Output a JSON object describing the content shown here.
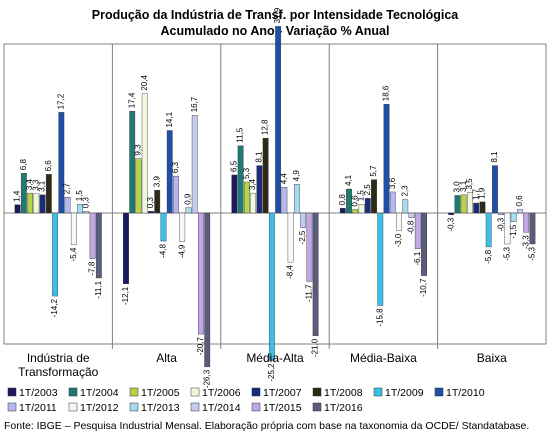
{
  "chart_data": {
    "type": "bar",
    "title": "Produção da Indústria de Transf. por Intensidade Tecnológica",
    "subtitle": "Acumulado no Ano - Variação % Anual",
    "categories": [
      "Indústria de Transformação",
      "Alta",
      "Média-Alta",
      "Média-Baixa",
      "Baixa"
    ],
    "ylim": [
      -28,
      32
    ],
    "grid": false,
    "legend_position": "bottom",
    "series": [
      {
        "name": "1T/2003",
        "color": "#1a1a60",
        "values": [
          1.4,
          -12.1,
          6.5,
          0.8,
          -0.3
        ]
      },
      {
        "name": "1T/2004",
        "color": "#1f7a72",
        "values": [
          6.8,
          17.4,
          11.5,
          4.1,
          3.0
        ]
      },
      {
        "name": "1T/2005",
        "color": "#b8d24a",
        "values": [
          3.4,
          9.3,
          5.3,
          0.6,
          3.1
        ]
      },
      {
        "name": "1T/2006",
        "color": "#eef8dc",
        "values": [
          3.3,
          20.4,
          3.4,
          1.5,
          3.5
        ]
      },
      {
        "name": "1T/2007",
        "color": "#1c2a7c",
        "values": [
          3.1,
          0.3,
          8.1,
          2.5,
          1.7
        ]
      },
      {
        "name": "1T/2008",
        "color": "#2b2b18",
        "values": [
          6.6,
          3.9,
          12.8,
          5.7,
          1.9
        ]
      },
      {
        "name": "1T/2009",
        "color": "#3cc0e6",
        "values": [
          -14.2,
          -4.8,
          -25.2,
          -15.8,
          -5.8
        ]
      },
      {
        "name": "1T/2010",
        "color": "#1f4fa8",
        "values": [
          17.2,
          14.1,
          31.9,
          18.6,
          8.1
        ]
      },
      {
        "name": "1T/2011",
        "color": "#b4b8f0",
        "values": [
          2.7,
          6.3,
          4.4,
          3.6,
          -0.3
        ]
      },
      {
        "name": "1T/2012",
        "color": "#f6f8fb",
        "values": [
          -5.4,
          -4.9,
          -8.4,
          -3.0,
          -5.3
        ]
      },
      {
        "name": "1T/2013",
        "color": "#a6dcf0",
        "values": [
          1.5,
          0.9,
          4.9,
          2.3,
          -1.5
        ]
      },
      {
        "name": "1T/2014",
        "color": "#c4ccf0",
        "values": [
          0.3,
          16.7,
          -2.5,
          -0.8,
          0.6
        ]
      },
      {
        "name": "1T/2015",
        "color": "#c2a6e6",
        "values": [
          -7.8,
          -20.7,
          -11.7,
          -6.1,
          -3.3
        ]
      },
      {
        "name": "1T/2016",
        "color": "#5a5c7c",
        "values": [
          -11.1,
          -26.3,
          -21.0,
          -10.7,
          -5.3
        ]
      }
    ],
    "value_labels": {
      "0": [
        "1,4",
        "-12,1",
        "6,5",
        "0,8",
        "-0,3"
      ],
      "1": [
        "6,8",
        "17,4",
        "11,5",
        "4,1",
        "3,0"
      ],
      "2": [
        "3,4",
        "9,3",
        "5,3",
        "0,6",
        "3,1"
      ],
      "3": [
        "3,3",
        "20,4",
        "3,4",
        "1,5",
        "3,5"
      ],
      "4": [
        "3,1",
        "0,3",
        "8,1",
        "2,5",
        "1,7"
      ],
      "5": [
        "6,6",
        "3,9",
        "12,8",
        "5,7",
        "1,9"
      ],
      "6": [
        "-14,2",
        "-4,8",
        "-25,2",
        "-15,8",
        "-5,8"
      ],
      "7": [
        "17,2",
        "14,1",
        "31,9",
        "18,6",
        "8,1"
      ],
      "8": [
        "2,7",
        "6,3",
        "4,4",
        "3,6",
        "-0,3"
      ],
      "9": [
        "-5,4",
        "-4,9",
        "-8,4",
        "-3,0",
        "-5,3"
      ],
      "10": [
        "1,5",
        "0,9",
        "4,9",
        "2,3",
        "-1,5"
      ],
      "11": [
        "0,3",
        "16,7",
        "-2,5",
        "-0,8",
        "0,6"
      ],
      "12": [
        "-7,8",
        "-20,7",
        "-11,7",
        "-6,1",
        "-3,3"
      ],
      "13": [
        "-11,1",
        "-26,3",
        "-21,0",
        "-10,7",
        "-5,3"
      ]
    },
    "category_labels": [
      [
        "Indústria de",
        "Transformação"
      ],
      [
        "Alta"
      ],
      [
        "Média-Alta"
      ],
      [
        "Média-Baixa"
      ],
      [
        "Baixa"
      ]
    ]
  },
  "source": "Fonte: IBGE – Pesquisa Industrial Mensal. Elaboração própria com base na taxonomia da OCDE/ Standatabase."
}
